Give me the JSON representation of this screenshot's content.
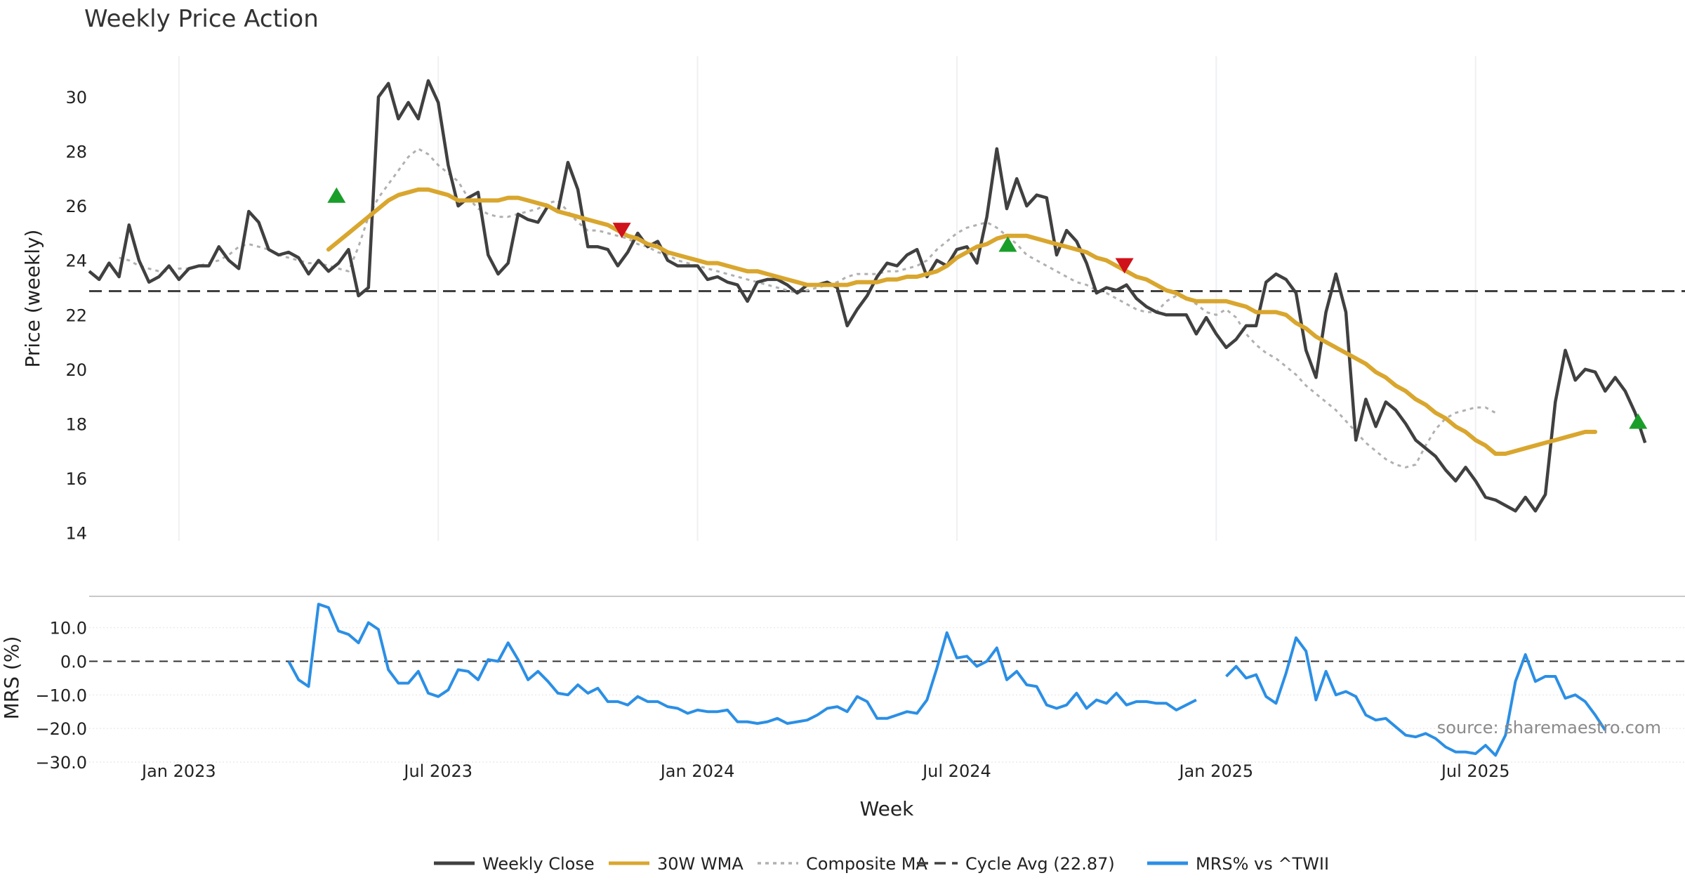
{
  "chart_data": {
    "type": "line",
    "title": "Weekly Price Action",
    "xlabel": "Week",
    "source": "source: sharemaestro.com",
    "x_ticks": [
      {
        "label": "Jan 2023",
        "week": 14
      },
      {
        "label": "Jul 2023",
        "week": 40
      },
      {
        "label": "Jan 2024",
        "week": 66
      },
      {
        "label": "Jul 2024",
        "week": 92
      },
      {
        "label": "Jan 2025",
        "week": 118
      },
      {
        "label": "Jul 2025",
        "week": 144
      }
    ],
    "x_range": [
      5,
      165
    ],
    "price_panel": {
      "ylabel": "Price (weekly)",
      "ylim": [
        13.7,
        31.5
      ],
      "yticks": [
        14,
        16,
        18,
        20,
        22,
        24,
        26,
        28,
        30
      ],
      "cycle_avg": 22.87,
      "series": [
        {
          "name": "Weekly Close",
          "color": "#404040",
          "start_week": 5,
          "values": [
            23.6,
            23.3,
            23.9,
            23.4,
            25.3,
            24.0,
            23.2,
            23.4,
            23.8,
            23.3,
            23.7,
            23.8,
            23.8,
            24.5,
            24.0,
            23.7,
            25.8,
            25.4,
            24.4,
            24.2,
            24.3,
            24.1,
            23.5,
            24.0,
            23.6,
            23.9,
            24.4,
            22.7,
            23.0,
            30.0,
            30.5,
            29.2,
            29.8,
            29.2,
            30.6,
            29.8,
            27.5,
            26.0,
            26.3,
            26.5,
            24.2,
            23.5,
            23.9,
            25.7,
            25.5,
            25.4,
            26.0,
            25.8,
            27.6,
            26.6,
            24.5,
            24.5,
            24.4,
            23.8,
            24.3,
            25.0,
            24.5,
            24.7,
            24.0,
            23.8,
            23.8,
            23.8,
            23.3,
            23.4,
            23.2,
            23.1,
            22.5,
            23.2,
            23.3,
            23.3,
            23.1,
            22.8,
            23.1,
            23.1,
            23.2,
            23.0,
            21.6,
            22.2,
            22.7,
            23.4,
            23.9,
            23.8,
            24.2,
            24.4,
            23.4,
            24.0,
            23.8,
            24.4,
            24.5,
            23.9,
            25.6,
            28.1,
            25.9,
            27.0,
            26.0,
            26.4,
            26.3,
            24.2,
            25.1,
            24.7,
            23.9,
            22.8,
            23.0,
            22.9,
            23.1,
            22.6,
            22.3,
            22.1,
            22.0,
            22.0,
            22.0,
            21.3,
            21.9,
            21.3,
            20.8,
            21.1,
            21.6,
            21.6,
            23.2,
            23.5,
            23.3,
            22.8,
            20.7,
            19.7,
            22.1,
            23.5,
            22.1,
            17.4,
            18.9,
            17.9,
            18.8,
            18.5,
            18.0,
            17.4,
            17.1,
            16.8,
            16.3,
            15.9,
            16.4,
            15.9,
            15.3,
            15.2,
            15.0,
            14.8,
            15.3,
            14.8,
            15.4,
            18.8,
            20.7,
            19.6,
            20.0,
            19.9,
            19.2,
            19.7,
            19.2,
            18.4,
            17.3
          ]
        },
        {
          "name": "30W WMA",
          "color": "#d9a62e",
          "start_week": 29,
          "values": [
            24.4,
            24.7,
            25.0,
            25.3,
            25.6,
            25.9,
            26.2,
            26.4,
            26.5,
            26.6,
            26.6,
            26.5,
            26.4,
            26.2,
            26.2,
            26.2,
            26.2,
            26.2,
            26.3,
            26.3,
            26.2,
            26.1,
            26.0,
            25.8,
            25.7,
            25.6,
            25.5,
            25.4,
            25.3,
            25.1,
            24.9,
            24.8,
            24.6,
            24.5,
            24.3,
            24.2,
            24.1,
            24.0,
            23.9,
            23.9,
            23.8,
            23.7,
            23.6,
            23.6,
            23.5,
            23.4,
            23.3,
            23.2,
            23.1,
            23.1,
            23.1,
            23.1,
            23.1,
            23.2,
            23.2,
            23.2,
            23.3,
            23.3,
            23.4,
            23.4,
            23.5,
            23.6,
            23.8,
            24.1,
            24.3,
            24.5,
            24.6,
            24.8,
            24.9,
            24.9,
            24.9,
            24.8,
            24.7,
            24.6,
            24.5,
            24.4,
            24.3,
            24.1,
            24.0,
            23.8,
            23.6,
            23.4,
            23.3,
            23.1,
            22.9,
            22.8,
            22.6,
            22.5,
            22.5,
            22.5,
            22.5,
            22.4,
            22.3,
            22.1,
            22.1,
            22.1,
            22.0,
            21.7,
            21.5,
            21.2,
            21.0,
            20.8,
            20.6,
            20.4,
            20.2,
            19.9,
            19.7,
            19.4,
            19.2,
            18.9,
            18.7,
            18.4,
            18.2,
            17.9,
            17.7,
            17.4,
            17.2,
            16.9,
            16.9,
            17.0,
            17.1,
            17.2,
            17.3,
            17.4,
            17.5,
            17.6,
            17.7,
            17.7
          ]
        },
        {
          "name": "Composite MA",
          "color": "#b0b0b0",
          "start_week": 8,
          "values": [
            24.1,
            24.0,
            23.8,
            23.7,
            23.6,
            23.6,
            23.7,
            23.7,
            23.8,
            23.9,
            24.0,
            24.2,
            24.5,
            24.6,
            24.5,
            24.4,
            24.2,
            24.1,
            24.0,
            23.9,
            23.9,
            23.8,
            23.7,
            23.6,
            24.5,
            25.6,
            26.3,
            26.8,
            27.3,
            27.8,
            28.1,
            27.9,
            27.5,
            27.2,
            26.9,
            26.3,
            25.9,
            25.7,
            25.6,
            25.6,
            25.7,
            25.8,
            25.9,
            26.1,
            26.2,
            25.8,
            25.4,
            25.1,
            25.1,
            25.0,
            24.9,
            24.8,
            24.6,
            24.5,
            24.3,
            24.2,
            24.0,
            23.9,
            23.8,
            23.7,
            23.6,
            23.5,
            23.4,
            23.3,
            23.2,
            23.1,
            23.0,
            22.9,
            22.8,
            22.9,
            23.0,
            23.1,
            23.2,
            23.4,
            23.5,
            23.5,
            23.5,
            23.6,
            23.6,
            23.7,
            23.8,
            24.0,
            24.4,
            24.7,
            25.0,
            25.2,
            25.3,
            25.4,
            25.2,
            24.9,
            24.6,
            24.2,
            24.0,
            23.8,
            23.6,
            23.4,
            23.2,
            23.1,
            22.9,
            22.8,
            22.6,
            22.4,
            22.2,
            22.1,
            22.1,
            22.5,
            22.7,
            22.6,
            22.4,
            22.1,
            22.0,
            22.2,
            21.9,
            21.3,
            20.9,
            20.6,
            20.4,
            20.1,
            19.8,
            19.4,
            19.1,
            18.8,
            18.5,
            18.1,
            17.7,
            17.3,
            17.0,
            16.7,
            16.5,
            16.4,
            16.5,
            17.2,
            17.8,
            18.2,
            18.4,
            18.5,
            18.6,
            18.6,
            18.4
          ]
        }
      ],
      "buy_signals": [
        {
          "week": 29.8,
          "price": 26.4
        },
        {
          "week": 97.1,
          "price": 24.6
        },
        {
          "week": 160.3,
          "price": 18.1
        }
      ],
      "sell_signals": [
        {
          "week": 58.4,
          "price": 25.1
        },
        {
          "week": 108.8,
          "price": 23.8
        }
      ]
    },
    "mrs_panel": {
      "ylabel": "MRS (%)",
      "ylim": [
        -30,
        18.5
      ],
      "yticks": [
        -30,
        -20,
        -10,
        0,
        10
      ],
      "ytick_labels": [
        "−30.0",
        "−20.0",
        "−10.0",
        "0.0",
        "10.0"
      ],
      "zero_line": 0,
      "series": [
        {
          "name": "MRS% vs ^TWII",
          "color": "#2b8fe5",
          "segments": [
            {
              "start_week": 25,
              "values": [
                0.0,
                -5.5,
                -7.5,
                17.0,
                16.0,
                9.0,
                8.0,
                5.5,
                11.5,
                9.5,
                -2.5,
                -6.5,
                -6.5,
                -3.0,
                -9.5,
                -10.5,
                -8.5,
                -2.5,
                -3.0,
                -5.5,
                0.5,
                0.0,
                5.5,
                0.5,
                -5.5,
                -3.0,
                -6.0,
                -9.5,
                -10.0,
                -7.0,
                -9.5,
                -8.0,
                -12.0,
                -12.0,
                -13.0,
                -10.5,
                -12.0,
                -12.0,
                -13.5,
                -14.0,
                -15.5,
                -14.5,
                -15.0,
                -15.0,
                -14.5,
                -18.0,
                -18.0,
                -18.5,
                -18.0,
                -17.0,
                -18.5,
                -18.0,
                -17.5,
                -16.0,
                -14.0,
                -13.5,
                -15.0,
                -10.5,
                -12.0,
                -17.0,
                -17.0,
                -16.0,
                -15.0,
                -15.5,
                -11.5,
                -2.0,
                8.5,
                1.0,
                1.5,
                -1.5,
                0.0,
                4.0,
                -5.5,
                -3.0,
                -7.0,
                -7.5,
                -13.0,
                -14.0,
                -13.0,
                -9.5,
                -14.0,
                -11.5,
                -12.5,
                -9.5,
                -13.0,
                -12.0,
                -12.0,
                -12.5,
                -12.5,
                -14.5,
                -13.0,
                -11.5
              ]
            },
            {
              "start_week": 119,
              "values": [
                -4.5,
                -1.5,
                -5.0,
                -4.0,
                -10.5,
                -12.5,
                -3.5,
                7.0,
                3.0,
                -11.5,
                -3.0,
                -10.0,
                -9.0,
                -10.5,
                -16.0,
                -17.5,
                -17.0,
                -19.5,
                -22.0,
                -22.5,
                -21.5,
                -23.0,
                -25.5,
                -27.0,
                -27.0,
                -27.5,
                -25.0,
                -28.0,
                -22.0,
                -6.0,
                2.0,
                -6.0,
                -4.5,
                -4.5,
                -11.0,
                -10.0,
                -12.0,
                -16.0,
                -20.5
              ]
            }
          ]
        }
      ]
    },
    "legend": [
      {
        "label": "Weekly Close",
        "color": "#404040",
        "style": "solid"
      },
      {
        "label": "30W WMA",
        "color": "#d9a62e",
        "style": "solid"
      },
      {
        "label": "Composite MA",
        "color": "#b0b0b0",
        "style": "dotted"
      },
      {
        "label": "Cycle Avg (22.87)",
        "color": "#404040",
        "style": "dashed"
      },
      {
        "label": "MRS% vs ^TWII",
        "color": "#2b8fe5",
        "style": "solid"
      }
    ]
  }
}
